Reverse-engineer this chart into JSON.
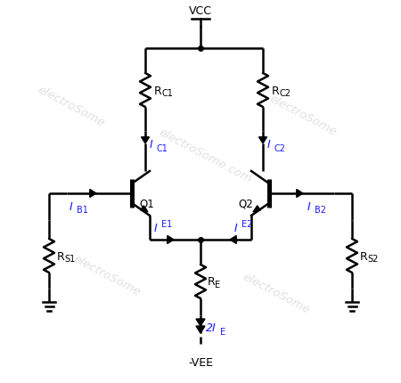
{
  "background_color": "#ffffff",
  "line_color": "#000000",
  "label_color": "#1a1aff",
  "figwidth": 4.5,
  "figheight": 4.31,
  "dpi": 100,
  "vcc_label": "VCC",
  "vee_label": "-VEE",
  "rc1_label": "RC1",
  "rc2_label": "RC2",
  "rs1_label": "RS1",
  "rs2_label": "RS2",
  "re_label": "RE",
  "q1_label": "Q1",
  "q2_label": "Q2"
}
